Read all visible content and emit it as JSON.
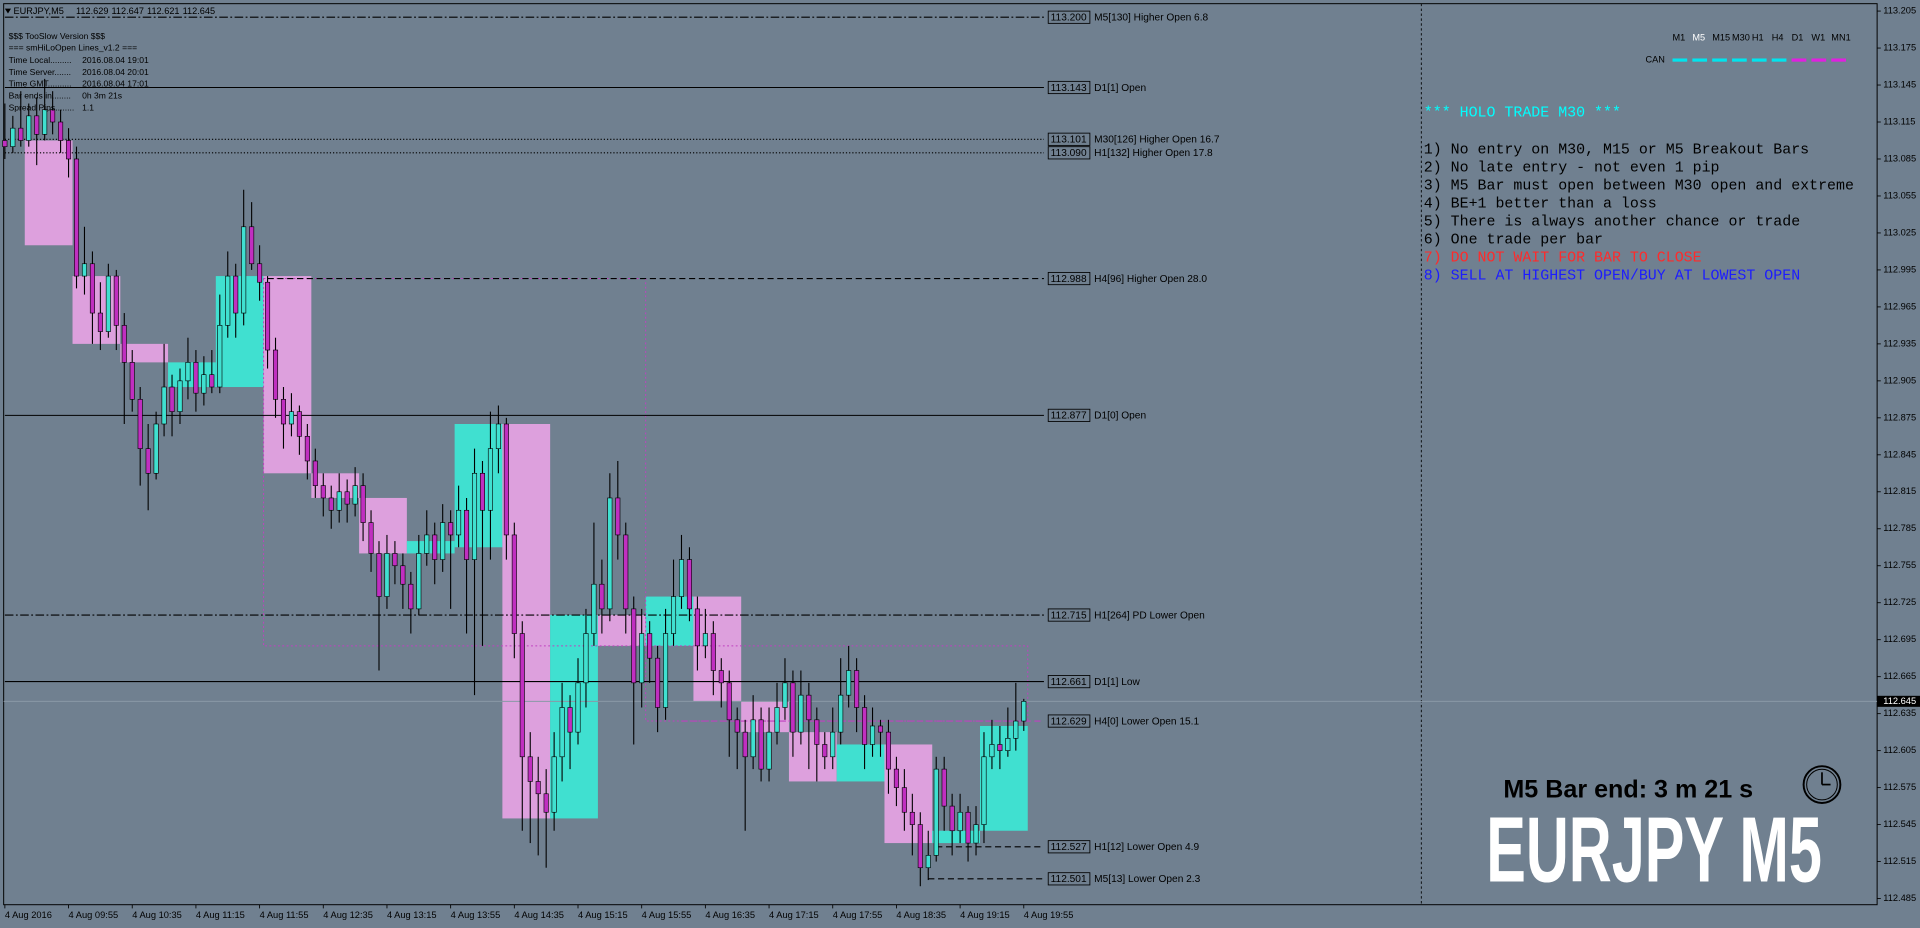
{
  "chart_data": {
    "type": "candlestick",
    "symbol": "EURJPY,M5",
    "colors": {
      "background": "#708090",
      "bull": "#40e0d0",
      "bear": "#c02fc0",
      "bull_box": "#40e0d0",
      "bear_box": "#dda0dd",
      "frame": "#c040c0"
    },
    "xlim": [
      -0.15,
      235.2
    ],
    "ylim": [
      112.48,
      113.211
    ],
    "xticks": [
      {
        "value": 0,
        "label": "4 Aug 2016"
      },
      {
        "value": 8,
        "label": "4 Aug 09:55"
      },
      {
        "value": 16,
        "label": "4 Aug 10:35"
      },
      {
        "value": 24,
        "label": "4 Aug 11:15"
      },
      {
        "value": 32,
        "label": "4 Aug 11:55"
      },
      {
        "value": 40,
        "label": "4 Aug 12:35"
      },
      {
        "value": 48,
        "label": "4 Aug 13:15"
      },
      {
        "value": 56,
        "label": "4 Aug 13:55"
      },
      {
        "value": 64,
        "label": "4 Aug 14:35"
      },
      {
        "value": 72,
        "label": "4 Aug 15:15"
      },
      {
        "value": 80,
        "label": "4 Aug 15:55"
      },
      {
        "value": 88,
        "label": "4 Aug 16:35"
      },
      {
        "value": 96,
        "label": "4 Aug 17:15"
      },
      {
        "value": 104,
        "label": "4 Aug 17:55"
      },
      {
        "value": 112,
        "label": "4 Aug 18:35"
      },
      {
        "value": 120,
        "label": "4 Aug 19:15"
      },
      {
        "value": 128,
        "label": "4 Aug 19:55"
      }
    ],
    "yticks": [
      113.205,
      113.175,
      113.145,
      113.115,
      113.085,
      113.055,
      113.025,
      112.995,
      112.965,
      112.935,
      112.905,
      112.875,
      112.845,
      112.815,
      112.785,
      112.755,
      112.725,
      112.695,
      112.665,
      112.635,
      112.605,
      112.575,
      112.545,
      112.515,
      112.485
    ],
    "candles": [
      [
        113.1,
        113.13,
        113.085,
        113.095
      ],
      [
        113.095,
        113.12,
        113.09,
        113.11
      ],
      [
        113.11,
        113.14,
        113.095,
        113.1
      ],
      [
        113.1,
        113.13,
        113.095,
        113.12
      ],
      [
        113.12,
        113.135,
        113.08,
        113.105
      ],
      [
        113.105,
        113.15,
        113.1,
        113.125
      ],
      [
        113.125,
        113.14,
        113.105,
        113.115
      ],
      [
        113.115,
        113.125,
        113.09,
        113.1
      ],
      [
        113.1,
        113.11,
        113.07,
        113.085
      ],
      [
        113.085,
        113.095,
        112.98,
        112.99
      ],
      [
        112.99,
        113.03,
        112.975,
        113.0
      ],
      [
        113.0,
        113.01,
        112.935,
        112.96
      ],
      [
        112.96,
        112.985,
        112.93,
        112.945
      ],
      [
        112.945,
        113.0,
        112.94,
        112.99
      ],
      [
        112.99,
        112.995,
        112.93,
        112.95
      ],
      [
        112.95,
        112.96,
        112.87,
        112.92
      ],
      [
        112.92,
        112.93,
        112.88,
        112.89
      ],
      [
        112.89,
        112.9,
        112.82,
        112.85
      ],
      [
        112.85,
        112.87,
        112.8,
        112.83
      ],
      [
        112.83,
        112.88,
        112.825,
        112.87
      ],
      [
        112.87,
        112.935,
        112.86,
        112.9
      ],
      [
        112.9,
        112.91,
        112.86,
        112.88
      ],
      [
        112.88,
        112.915,
        112.87,
        112.905
      ],
      [
        112.905,
        112.94,
        112.89,
        112.92
      ],
      [
        112.92,
        112.93,
        112.88,
        112.895
      ],
      [
        112.895,
        112.925,
        112.885,
        112.91
      ],
      [
        112.91,
        112.93,
        112.895,
        112.9
      ],
      [
        112.9,
        112.975,
        112.895,
        112.95
      ],
      [
        112.95,
        113.01,
        112.94,
        112.99
      ],
      [
        112.99,
        113.0,
        112.94,
        112.96
      ],
      [
        112.96,
        113.06,
        112.95,
        113.03
      ],
      [
        113.03,
        113.05,
        112.995,
        113.0
      ],
      [
        113.0,
        113.015,
        112.97,
        112.985
      ],
      [
        112.985,
        112.99,
        112.915,
        112.93
      ],
      [
        112.93,
        112.94,
        112.875,
        112.89
      ],
      [
        112.89,
        112.9,
        112.85,
        112.87
      ],
      [
        112.87,
        112.895,
        112.86,
        112.88
      ],
      [
        112.88,
        112.885,
        112.845,
        112.86
      ],
      [
        112.86,
        112.87,
        112.825,
        112.84
      ],
      [
        112.84,
        112.85,
        112.81,
        112.82
      ],
      [
        112.82,
        112.83,
        112.795,
        112.81
      ],
      [
        112.81,
        112.82,
        112.785,
        112.8
      ],
      [
        112.8,
        112.83,
        112.79,
        112.815
      ],
      [
        112.815,
        112.825,
        112.79,
        112.805
      ],
      [
        112.805,
        112.835,
        112.795,
        112.82
      ],
      [
        112.82,
        112.83,
        112.775,
        112.79
      ],
      [
        112.79,
        112.8,
        112.75,
        112.765
      ],
      [
        112.765,
        112.775,
        112.67,
        112.73
      ],
      [
        112.73,
        112.78,
        112.72,
        112.765
      ],
      [
        112.765,
        112.775,
        112.74,
        112.755
      ],
      [
        112.755,
        112.765,
        112.72,
        112.74
      ],
      [
        112.74,
        112.75,
        112.7,
        112.72
      ],
      [
        112.72,
        112.78,
        112.715,
        112.765
      ],
      [
        112.765,
        112.8,
        112.755,
        112.78
      ],
      [
        112.78,
        112.79,
        112.74,
        112.76
      ],
      [
        112.76,
        112.805,
        112.75,
        112.79
      ],
      [
        112.79,
        112.8,
        112.72,
        112.78
      ],
      [
        112.78,
        112.82,
        112.77,
        112.8
      ],
      [
        112.8,
        112.81,
        112.7,
        112.76
      ],
      [
        112.76,
        112.85,
        112.65,
        112.83
      ],
      [
        112.83,
        112.84,
        112.69,
        112.8
      ],
      [
        112.8,
        112.88,
        112.76,
        112.85
      ],
      [
        112.85,
        112.885,
        112.83,
        112.87
      ],
      [
        112.87,
        112.875,
        112.76,
        112.78
      ],
      [
        112.78,
        112.79,
        112.68,
        112.7
      ],
      [
        112.7,
        112.71,
        112.54,
        112.6
      ],
      [
        112.6,
        112.62,
        112.53,
        112.58
      ],
      [
        112.58,
        112.6,
        112.52,
        112.57
      ],
      [
        112.57,
        112.59,
        112.51,
        112.555
      ],
      [
        112.555,
        112.62,
        112.54,
        112.6
      ],
      [
        112.6,
        112.66,
        112.58,
        112.64
      ],
      [
        112.64,
        112.65,
        112.59,
        112.62
      ],
      [
        112.62,
        112.68,
        112.61,
        112.66
      ],
      [
        112.66,
        112.72,
        112.64,
        112.7
      ],
      [
        112.7,
        112.79,
        112.69,
        112.74
      ],
      [
        112.74,
        112.76,
        112.7,
        112.72
      ],
      [
        112.72,
        112.83,
        112.71,
        112.81
      ],
      [
        112.81,
        112.84,
        112.76,
        112.78
      ],
      [
        112.78,
        112.79,
        112.7,
        112.72
      ],
      [
        112.72,
        112.73,
        112.61,
        112.66
      ],
      [
        112.66,
        112.72,
        112.64,
        112.7
      ],
      [
        112.7,
        112.71,
        112.66,
        112.68
      ],
      [
        112.68,
        112.69,
        112.62,
        112.64
      ],
      [
        112.64,
        112.72,
        112.63,
        112.7
      ],
      [
        112.7,
        112.76,
        112.69,
        112.73
      ],
      [
        112.73,
        112.78,
        112.72,
        112.76
      ],
      [
        112.76,
        112.77,
        112.71,
        112.72
      ],
      [
        112.72,
        112.73,
        112.67,
        112.69
      ],
      [
        112.69,
        112.72,
        112.68,
        112.7
      ],
      [
        112.7,
        112.71,
        112.65,
        112.67
      ],
      [
        112.67,
        112.68,
        112.64,
        112.66
      ],
      [
        112.66,
        112.67,
        112.6,
        112.63
      ],
      [
        112.63,
        112.64,
        112.59,
        112.62
      ],
      [
        112.62,
        112.63,
        112.54,
        112.6
      ],
      [
        112.6,
        112.65,
        112.59,
        112.63
      ],
      [
        112.63,
        112.64,
        112.58,
        112.59
      ],
      [
        112.59,
        112.64,
        112.58,
        112.62
      ],
      [
        112.62,
        112.66,
        112.61,
        112.64
      ],
      [
        112.64,
        112.68,
        112.63,
        112.66
      ],
      [
        112.66,
        112.67,
        112.6,
        112.62
      ],
      [
        112.62,
        112.67,
        112.61,
        112.65
      ],
      [
        112.65,
        112.66,
        112.59,
        112.63
      ],
      [
        112.63,
        112.64,
        112.58,
        112.61
      ],
      [
        112.61,
        112.62,
        112.59,
        112.6
      ],
      [
        112.6,
        112.64,
        112.59,
        112.62
      ],
      [
        112.62,
        112.68,
        112.61,
        112.65
      ],
      [
        112.65,
        112.69,
        112.64,
        112.67
      ],
      [
        112.67,
        112.68,
        112.62,
        112.64
      ],
      [
        112.64,
        112.65,
        112.59,
        112.61
      ],
      [
        112.61,
        112.64,
        112.6,
        112.625
      ],
      [
        112.625,
        112.63,
        112.6,
        112.62
      ],
      [
        112.62,
        112.63,
        112.57,
        112.59
      ],
      [
        112.59,
        112.6,
        112.56,
        112.575
      ],
      [
        112.575,
        112.59,
        112.54,
        112.555
      ],
      [
        112.555,
        112.57,
        112.52,
        112.545
      ],
      [
        112.545,
        112.555,
        112.495,
        112.51
      ],
      [
        112.51,
        112.54,
        112.5,
        112.52
      ],
      [
        112.52,
        112.6,
        112.515,
        112.59
      ],
      [
        112.59,
        112.6,
        112.54,
        112.56
      ],
      [
        112.56,
        112.57,
        112.52,
        112.54
      ],
      [
        112.54,
        112.57,
        112.53,
        112.555
      ],
      [
        112.555,
        112.56,
        112.515,
        112.53
      ],
      [
        112.53,
        112.56,
        112.52,
        112.545
      ],
      [
        112.545,
        112.62,
        112.53,
        112.6
      ],
      [
        112.6,
        112.63,
        112.59,
        112.61
      ],
      [
        112.61,
        112.625,
        112.59,
        112.605
      ],
      [
        112.605,
        112.64,
        112.6,
        112.615
      ],
      [
        112.615,
        112.66,
        112.605,
        112.629
      ],
      [
        112.629,
        112.647,
        112.621,
        112.645
      ]
    ],
    "htf_bars": [
      {
        "from": 3,
        "to": 9,
        "open": 113.1,
        "close": 113.015
      },
      {
        "from": 9,
        "to": 15,
        "open": 112.99,
        "close": 112.935
      },
      {
        "from": 15,
        "to": 21,
        "open": 112.935,
        "close": 112.92
      },
      {
        "from": 21,
        "to": 27,
        "open": 112.9,
        "close": 112.92
      },
      {
        "from": 27,
        "to": 33,
        "open": 112.9,
        "close": 112.99
      },
      {
        "from": 33,
        "to": 39,
        "open": 112.99,
        "close": 112.83
      },
      {
        "from": 39,
        "to": 45,
        "open": 112.83,
        "close": 112.81
      },
      {
        "from": 45,
        "to": 51,
        "open": 112.81,
        "close": 112.765
      },
      {
        "from": 51,
        "to": 57,
        "open": 112.765,
        "close": 112.775
      },
      {
        "from": 57,
        "to": 63,
        "open": 112.77,
        "close": 112.87
      },
      {
        "from": 63,
        "to": 69,
        "open": 112.87,
        "close": 112.55
      },
      {
        "from": 69,
        "to": 75,
        "open": 112.55,
        "close": 112.715
      },
      {
        "from": 75,
        "to": 81,
        "open": 112.715,
        "close": 112.69
      },
      {
        "from": 81,
        "to": 87,
        "open": 112.69,
        "close": 112.73
      },
      {
        "from": 87,
        "to": 93,
        "open": 112.73,
        "close": 112.645
      },
      {
        "from": 93,
        "to": 99,
        "open": 112.645,
        "close": 112.62
      },
      {
        "from": 99,
        "to": 105,
        "open": 112.62,
        "close": 112.58
      },
      {
        "from": 105,
        "to": 111,
        "open": 112.58,
        "close": 112.61
      },
      {
        "from": 111,
        "to": 117,
        "open": 112.61,
        "close": 112.53
      },
      {
        "from": 117,
        "to": 123,
        "open": 112.53,
        "close": 112.54
      },
      {
        "from": 123,
        "to": 129,
        "open": 112.54,
        "close": 112.625
      }
    ],
    "h4_frames": [
      {
        "from": 33,
        "to": 81,
        "high": 112.988,
        "low": 112.69
      },
      {
        "from": 81,
        "to": 129,
        "high": 112.69,
        "low": 112.629
      }
    ],
    "levels": [
      {
        "value": 113.2,
        "value_label": "113.200",
        "name": "M5[130] Higher Open 6.8",
        "style": "dashdot",
        "color": "#000000",
        "from": 0
      },
      {
        "value": 113.143,
        "name": "D1[1] Open",
        "style": "solid",
        "color": "#000000",
        "from": 0
      },
      {
        "value": 113.101,
        "name": "M30[126] Higher Open 16.7",
        "style": "dotted",
        "color": "#000000",
        "from": 0
      },
      {
        "value": 113.09,
        "value_label": "113.090",
        "name": "H1[132] Higher Open 17.8",
        "style": "dotted",
        "color": "#000000",
        "from": 0
      },
      {
        "value": 112.988,
        "name": "H4[96] Higher Open 28.0",
        "style": "dashed",
        "color": "#000000",
        "from": 33
      },
      {
        "value": 112.877,
        "name": "D1[0] Open",
        "style": "solid",
        "color": "#000000",
        "from": 0
      },
      {
        "value": 112.715,
        "name": "H1[264] PD Lower Open",
        "style": "dashdot",
        "color": "#000000",
        "from": 0
      },
      {
        "value": 112.661,
        "name": "D1[1] Low",
        "style": "solid",
        "color": "#000000",
        "from": 0
      },
      {
        "value": 112.629,
        "name": "H4[0] Lower Open 15.1",
        "style": "dashed",
        "color": "#c040c0",
        "from": 85
      },
      {
        "value": 112.527,
        "name": "H1[12] Lower Open 4.9",
        "style": "dashed",
        "color": "#000000",
        "from": 117
      },
      {
        "value": 112.501,
        "name": "M5[13] Lower Open 2.3",
        "style": "dashed",
        "color": "#000000",
        "from": 116
      }
    ]
  },
  "info_panel": {
    "title": "$$$ TooSlow Version $$$",
    "subtitle": "=== smHiLoOpen Lines_v1.2 ===",
    "rows": [
      [
        "Time Local.........",
        "2016.08.04 19:01"
      ],
      [
        "Time Server.......",
        "2016.08.04 20:01"
      ],
      [
        "Time GMT..........",
        "2016.08.04 17:01"
      ],
      [
        "Bar ends in........",
        "0h 3m 21s"
      ],
      [
        "Spread Pips........",
        "1.1"
      ]
    ]
  },
  "timeframe_panel": {
    "row_label": "CAN",
    "items": [
      {
        "name": "M1",
        "color": "#00e5ee",
        "current": false
      },
      {
        "name": "M5",
        "color": "#00e5ee",
        "current": true
      },
      {
        "name": "M15",
        "color": "#00e5ee",
        "current": false
      },
      {
        "name": "M30",
        "color": "#00e5ee",
        "current": false
      },
      {
        "name": "H1",
        "color": "#00e5ee",
        "current": false
      },
      {
        "name": "H4",
        "color": "#00e5ee",
        "current": false
      },
      {
        "name": "D1",
        "color": "#e020e0",
        "current": false
      },
      {
        "name": "W1",
        "color": "#e020e0",
        "current": false
      },
      {
        "name": "MN1",
        "color": "#e020e0",
        "current": false
      }
    ]
  },
  "rules_panel": {
    "title": "*** HOLO TRADE M30 ***",
    "title_color": "#00ffff",
    "rules": [
      {
        "text": "1) No entry on M30, M15 or M5 Breakout Bars",
        "color": "#000000"
      },
      {
        "text": "2) No late entry - not even 1 pip",
        "color": "#000000"
      },
      {
        "text": "3) M5 Bar must open between M30 open and extreme",
        "color": "#000000"
      },
      {
        "text": "4) BE+1 better than a loss",
        "color": "#000000"
      },
      {
        "text": "5) There is always another chance or trade",
        "color": "#000000"
      },
      {
        "text": "6) One trade per bar",
        "color": "#000000"
      },
      {
        "text": "7) DO NOT WAIT FOR BAR TO CLOSE",
        "color": "#ff2a2a"
      },
      {
        "text": "8) SELL AT HIGHEST OPEN/BUY AT LOWEST OPEN",
        "color": "#1c1cff"
      }
    ]
  },
  "bar_timer": "M5 Bar end: 3 m 21 s",
  "watermark": "EURJPY M5"
}
